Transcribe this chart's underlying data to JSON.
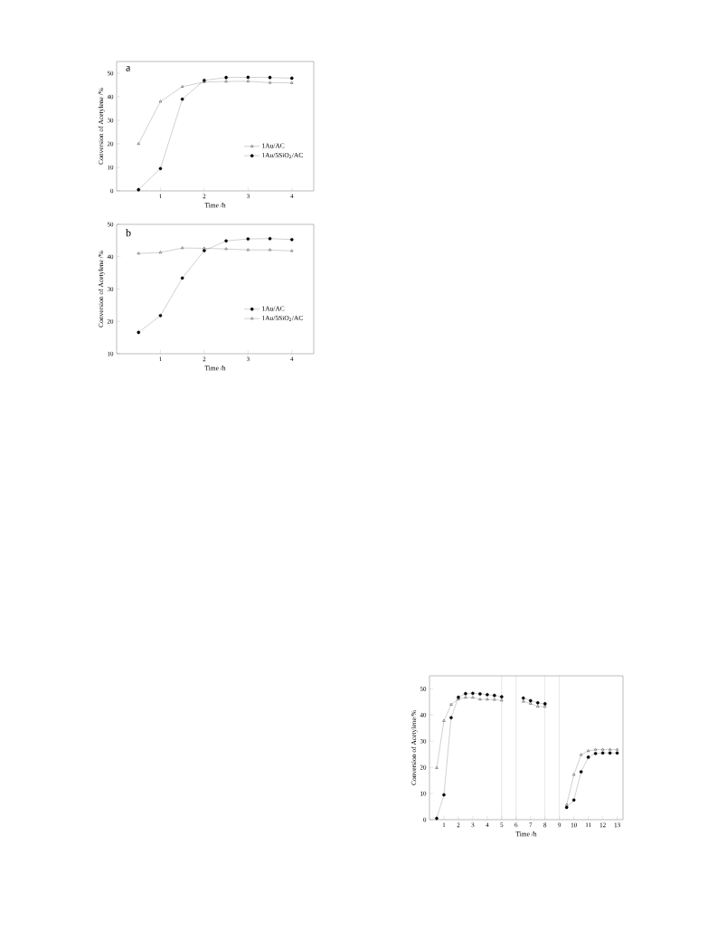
{
  "chart_data": [
    {
      "type": "line",
      "xlabel": "Time /h",
      "ylabel": "Conversion of Acetylene /%",
      "annotations": [
        "a"
      ],
      "xlim": [
        0,
        4.5
      ],
      "ylim": [
        0,
        55
      ],
      "xticks": [
        1,
        2,
        3,
        4
      ],
      "yticks": [
        0,
        10,
        20,
        30,
        40,
        50
      ],
      "legend": "right",
      "x": [
        0.5,
        1,
        1.5,
        2,
        2.5,
        3,
        3.5,
        4
      ],
      "series": [
        {
          "name": "1Au/AC",
          "color": "#000000",
          "marker": "triangle",
          "values": [
            20,
            38,
            44.3,
            46.3,
            46.5,
            46.6,
            46,
            45.9
          ]
        },
        {
          "name": "1Au/5SiO$_{2}$/AC",
          "color": "#000000",
          "marker": "circle",
          "values": [
            0.5,
            9.5,
            39,
            47,
            48.2,
            48.3,
            48.2,
            47.9
          ]
        }
      ]
    },
    {
      "type": "line",
      "xlabel": "Time /h",
      "ylabel": "Conversion of Acetylene /%",
      "annotations": [
        "b"
      ],
      "xlim": [
        0,
        4.5
      ],
      "ylim": [
        10,
        50
      ],
      "xticks": [
        1,
        2,
        3,
        4
      ],
      "yticks": [
        10,
        20,
        30,
        40,
        50
      ],
      "legend": "right",
      "x": [
        0.5,
        1,
        1.5,
        2,
        2.5,
        3,
        3.5,
        4
      ],
      "series": [
        {
          "name": "1Au/AC",
          "color": "#000000",
          "marker": "circle",
          "values": [
            16.6,
            21.8,
            33.4,
            41.9,
            44.9,
            45.5,
            45.6,
            45.3
          ]
        },
        {
          "name": "1Au/5SiO$_{2}$/AC",
          "color": "#000000",
          "marker": "triangle",
          "values": [
            41.0,
            41.3,
            42.7,
            42.6,
            42.4,
            42.1,
            42.1,
            41.8
          ]
        }
      ]
    },
    {
      "type": "line",
      "xlabel": "Time /h",
      "ylabel": "Conversion of Acetylene/%",
      "xlim": [
        0,
        13.4
      ],
      "ylim": [
        0,
        55
      ],
      "xticks": [
        1,
        2,
        3,
        4,
        5,
        6,
        7,
        8,
        9,
        10,
        11,
        12,
        13
      ],
      "yticks": [
        0,
        10,
        20,
        30,
        40,
        50
      ],
      "x": [
        0.5,
        1,
        1.5,
        2,
        2.5,
        3,
        3.5,
        4,
        4.5,
        5,
        5.5,
        6,
        6.5,
        7,
        7.5,
        8,
        8.5,
        9,
        9.5,
        10,
        10.5,
        11,
        11.5,
        12,
        12.5,
        13
      ],
      "ref_lines": [
        {
          "axis": "x",
          "value": 5,
          "color": "#bbbbbb"
        },
        {
          "axis": "x",
          "value": 6,
          "color": "#bbbbbb"
        },
        {
          "axis": "x",
          "value": 8,
          "color": "#bbbbbb"
        },
        {
          "axis": "x",
          "value": 9,
          "color": "#bbbbbb"
        }
      ],
      "series": [
        {
          "color": "#000000",
          "marker": "triangle",
          "values": [
            19.8,
            37.8,
            44,
            46.1,
            46.7,
            46.7,
            46,
            46,
            45.9,
            45.6,
            null,
            null,
            45.2,
            44.4,
            43.3,
            43.2,
            null,
            null,
            5.7,
            17.2,
            24.8,
            26.3,
            26.8,
            26.8,
            26.8,
            26.8
          ]
        },
        {
          "color": "#000000",
          "marker": "circle",
          "values": [
            0.5,
            9.5,
            39,
            46.8,
            48.2,
            48.3,
            48.1,
            47.8,
            47.5,
            47.0,
            null,
            null,
            46.5,
            45.5,
            44.7,
            44.3,
            null,
            null,
            4.7,
            7.5,
            18.3,
            23.9,
            25.3,
            25.5,
            25.5,
            25.5
          ]
        }
      ]
    }
  ]
}
